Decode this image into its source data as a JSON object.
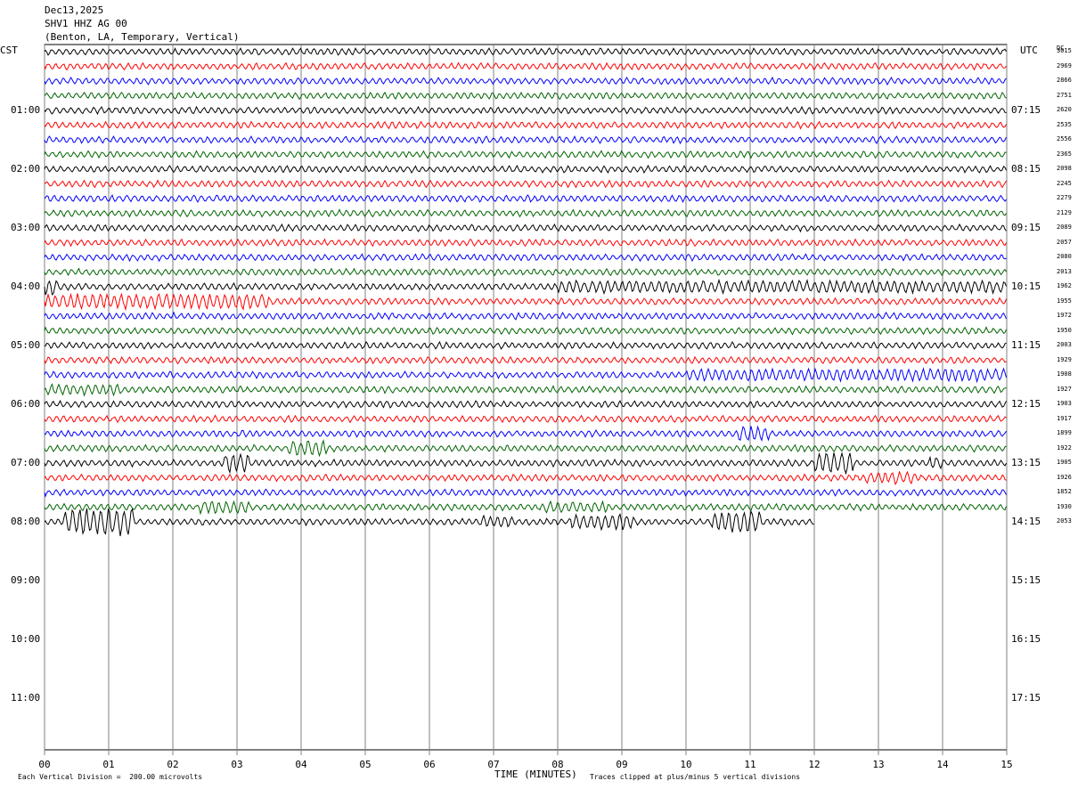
{
  "header": {
    "date": "Dec13,2025",
    "station": "SHV1 HHZ AG 00",
    "location": "(Benton, LA, Temporary, Vertical)"
  },
  "left_axis_title": "CST",
  "right_axis_title": "UTC",
  "dc_title": "DC",
  "cst_labels": [
    "01:00",
    "02:00",
    "03:00",
    "04:00",
    "05:00",
    "06:00",
    "07:00",
    "08:00",
    "09:00",
    "10:00",
    "11:00"
  ],
  "utc_labels": [
    "07:15",
    "08:15",
    "09:15",
    "10:15",
    "11:15",
    "12:15",
    "13:15",
    "14:15",
    "15:15",
    "16:15",
    "17:15"
  ],
  "dc_values": [
    "3015",
    "2969",
    "2866",
    "2751",
    "2620",
    "2535",
    "2556",
    "2365",
    "2098",
    "2245",
    "2279",
    "2129",
    "2089",
    "2057",
    "2080",
    "2013",
    "1962",
    "1955",
    "1972",
    "1950",
    "2003",
    "1929",
    "1908",
    "1927",
    "1903",
    "1917",
    "1899",
    "1922",
    "1905",
    "1926",
    "1852",
    "1930",
    "2053"
  ],
  "x_ticks": [
    "00",
    "01",
    "02",
    "03",
    "04",
    "05",
    "06",
    "07",
    "08",
    "09",
    "10",
    "11",
    "12",
    "13",
    "14",
    "15"
  ],
  "x_axis_label": "TIME (MINUTES)",
  "footer": {
    "scale_note": "Each Vertical Division =  200.00 microvolts",
    "clip_note": "Traces clipped at plus/minus 5 vertical divisions"
  },
  "trace_colors": [
    "#000000",
    "#ff0000",
    "#0000ff",
    "#006400"
  ],
  "trace_count": 33,
  "last_trace_end_minute": 12
}
